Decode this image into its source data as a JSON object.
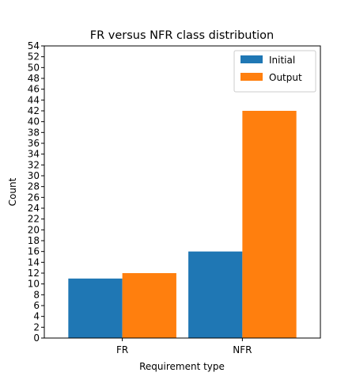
{
  "chart_data": {
    "type": "bar",
    "title": "FR versus NFR class distribution",
    "xlabel": "Requirement type",
    "ylabel": "Count",
    "categories": [
      "FR",
      "NFR"
    ],
    "series": [
      {
        "name": "Initial",
        "values": [
          11,
          16
        ],
        "color": "#1f77b4"
      },
      {
        "name": "Output",
        "values": [
          12,
          42
        ],
        "color": "#ff7f0e"
      }
    ],
    "ylim": [
      0,
      54
    ],
    "ytick_step": 2,
    "grid": false,
    "legend_position": "top-right"
  }
}
